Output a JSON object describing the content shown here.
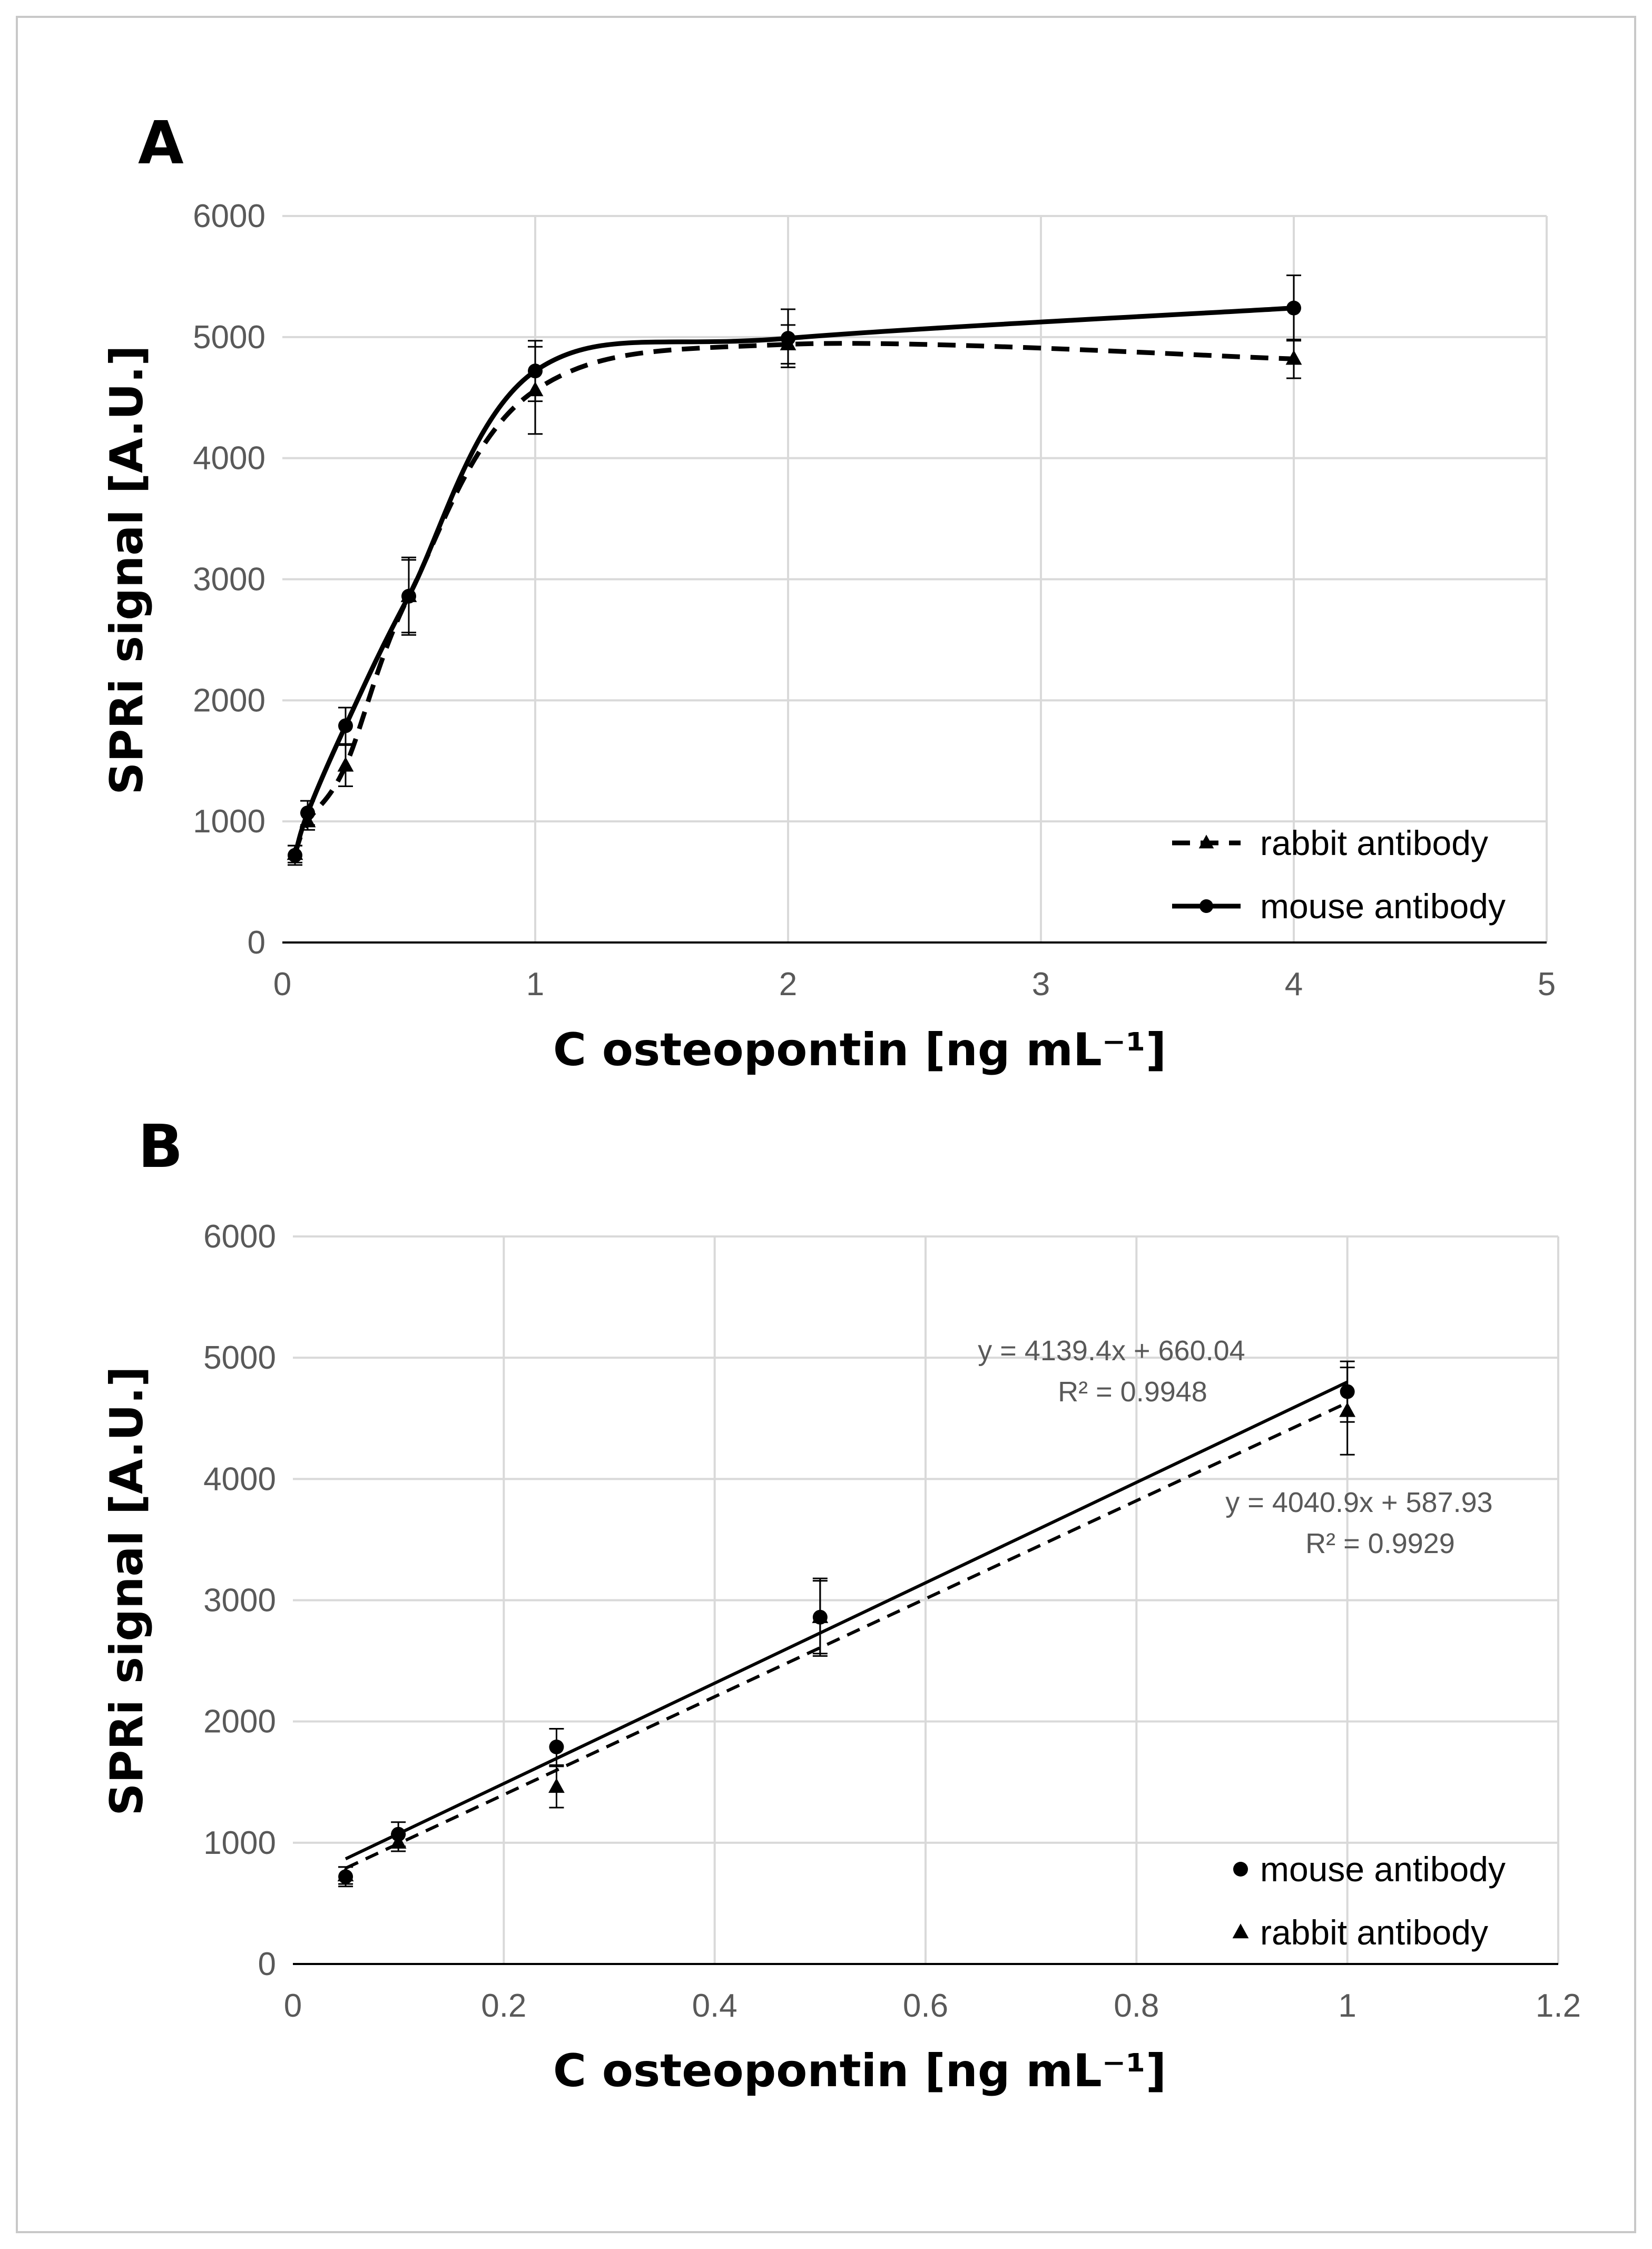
{
  "chart_data": [
    {
      "panel": "A",
      "type": "line",
      "xlabel": "C osteopontin [ng mL⁻¹]",
      "ylabel": "SPRi signal [A.U.]",
      "xlim": [
        0,
        5
      ],
      "ylim": [
        0,
        6000
      ],
      "x_ticks": [
        "0",
        "1",
        "2",
        "3",
        "4",
        "5"
      ],
      "y_ticks": [
        "0",
        "1000",
        "2000",
        "3000",
        "4000",
        "5000",
        "6000"
      ],
      "grid": true,
      "legend_position": "bottom-right",
      "series": [
        {
          "name": "rabbit antibody",
          "style": "dashed",
          "marker": "triangle",
          "x": [
            0.05,
            0.1,
            0.25,
            0.5,
            1,
            2,
            4
          ],
          "y": [
            730,
            1000,
            1460,
            2860,
            4560,
            4940,
            4820
          ],
          "err": [
            70,
            70,
            170,
            300,
            360,
            160,
            160
          ]
        },
        {
          "name": "mouse antibody",
          "style": "solid",
          "marker": "circle",
          "x": [
            0.05,
            0.1,
            0.25,
            0.5,
            1,
            2,
            4
          ],
          "y": [
            720,
            1070,
            1790,
            2860,
            4720,
            4990,
            5240
          ],
          "err": [
            80,
            100,
            150,
            320,
            250,
            240,
            270
          ]
        }
      ]
    },
    {
      "panel": "B",
      "type": "scatter",
      "xlabel": "C osteopontin [ng mL⁻¹]",
      "ylabel": "SPRi signal [A.U.]",
      "xlim": [
        0,
        1.2
      ],
      "ylim": [
        0,
        6000
      ],
      "x_ticks": [
        "0",
        "0.2",
        "0.4",
        "0.6",
        "0.8",
        "1",
        "1.2"
      ],
      "y_ticks": [
        "0",
        "1000",
        "2000",
        "3000",
        "4000",
        "5000",
        "6000"
      ],
      "grid": true,
      "legend_position": "bottom-right",
      "series": [
        {
          "name": "mouse antibody",
          "marker": "circle",
          "trendline": "solid",
          "slope": 4139.4,
          "intercept": 660.04,
          "equation": "y = 4139.4x + 660.04",
          "r2": "R² = 0.9948",
          "x": [
            0.05,
            0.1,
            0.25,
            0.5,
            1
          ],
          "y": [
            720,
            1070,
            1790,
            2860,
            4720
          ],
          "err": [
            80,
            100,
            150,
            320,
            250
          ]
        },
        {
          "name": "rabbit antibody",
          "marker": "triangle",
          "trendline": "dashed",
          "slope": 4040.9,
          "intercept": 587.93,
          "equation": "y = 4040.9x + 587.93",
          "r2": "R² = 0.9929",
          "x": [
            0.05,
            0.1,
            0.25,
            0.5,
            1
          ],
          "y": [
            730,
            1000,
            1460,
            2860,
            4560
          ],
          "err": [
            70,
            70,
            170,
            300,
            360
          ]
        }
      ]
    }
  ]
}
